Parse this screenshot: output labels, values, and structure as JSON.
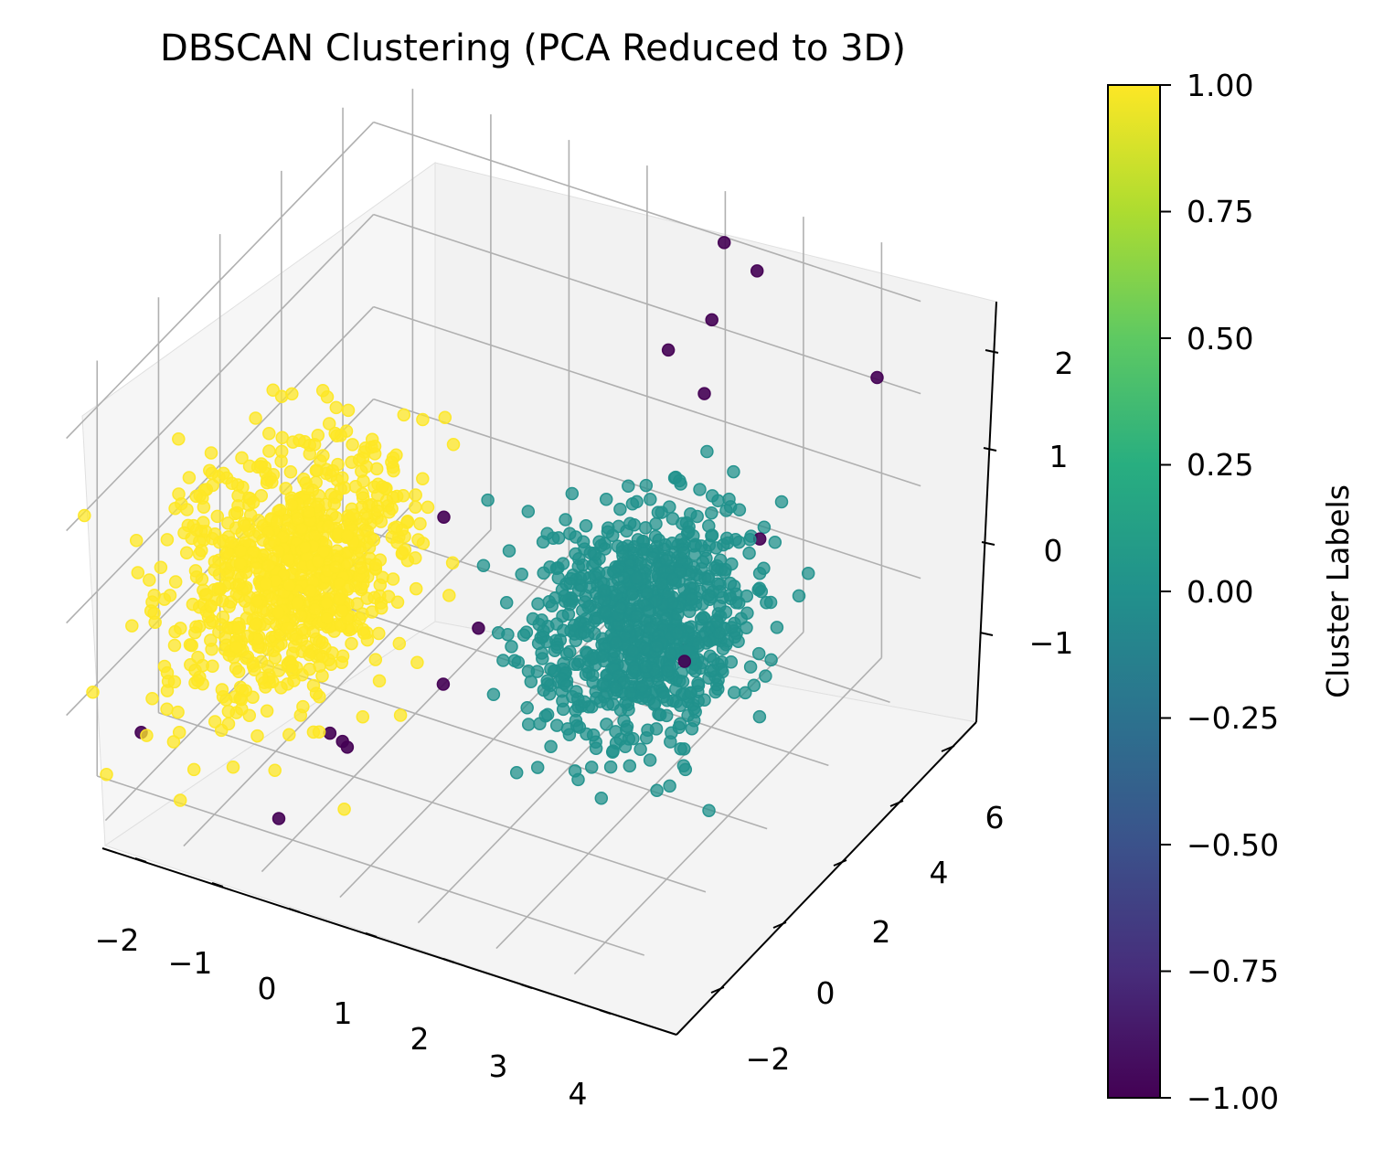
{
  "chart_data": {
    "type": "scatter",
    "projection": "3d",
    "title": "DBSCAN Clustering (PCA Reduced to 3D)",
    "xlabel": "",
    "ylabel": "",
    "zlabel": "",
    "x_ticks": [
      "−2",
      "−1",
      "0",
      "1",
      "2",
      "3",
      "4"
    ],
    "y_ticks": [
      "−2",
      "0",
      "2",
      "4",
      "6"
    ],
    "z_ticks": [
      "−1",
      "0",
      "1",
      "2"
    ],
    "xlim": [
      -2.5,
      4.5
    ],
    "ylim": [
      -3,
      7
    ],
    "zlim": [
      -2,
      2.5
    ],
    "grid": true,
    "series": [
      {
        "label": 1.0,
        "color": "#fde725",
        "center": [
          -0.6,
          -0.5,
          0.2
        ],
        "spread": [
          0.55,
          1.3,
          0.55
        ],
        "count": 900
      },
      {
        "label": 0.0,
        "color": "#21918c",
        "center": [
          2.7,
          2.6,
          -0.5
        ],
        "spread": [
          0.55,
          1.1,
          0.5
        ],
        "count": 900
      },
      {
        "label": -1.0,
        "color": "#440154",
        "points": [
          [
            2.3,
            6.2,
            2.3
          ],
          [
            2.8,
            6.0,
            2.2
          ],
          [
            2.3,
            5.8,
            1.6
          ],
          [
            1.9,
            5.4,
            1.3
          ],
          [
            2.4,
            5.3,
            1.0
          ],
          [
            4.1,
            6.6,
            1.2
          ],
          [
            3.7,
            3.8,
            0.3
          ],
          [
            0.6,
            1.4,
            0.5
          ],
          [
            3.6,
            1.6,
            -0.3
          ],
          [
            1.3,
            -0.4,
            -0.5
          ],
          [
            0.4,
            -1.8,
            -0.8
          ],
          [
            0.6,
            -1.9,
            -0.8
          ],
          [
            0.7,
            -2.0,
            -0.8
          ],
          [
            0.1,
            -2.7,
            -1.5
          ],
          [
            1.2,
            1.0,
            -0.4
          ],
          [
            2.9,
            3.5,
            -1.0
          ],
          [
            -1.7,
            -2.6,
            -1.1
          ]
        ]
      }
    ],
    "colorbar": {
      "label": "Cluster Labels",
      "min": -1.0,
      "max": 1.0,
      "ticks": [
        "1.00",
        "0.75",
        "0.50",
        "0.25",
        "0.00",
        "−0.25",
        "−0.50",
        "−0.75",
        "−1.00"
      ],
      "colormap": "viridis"
    }
  }
}
